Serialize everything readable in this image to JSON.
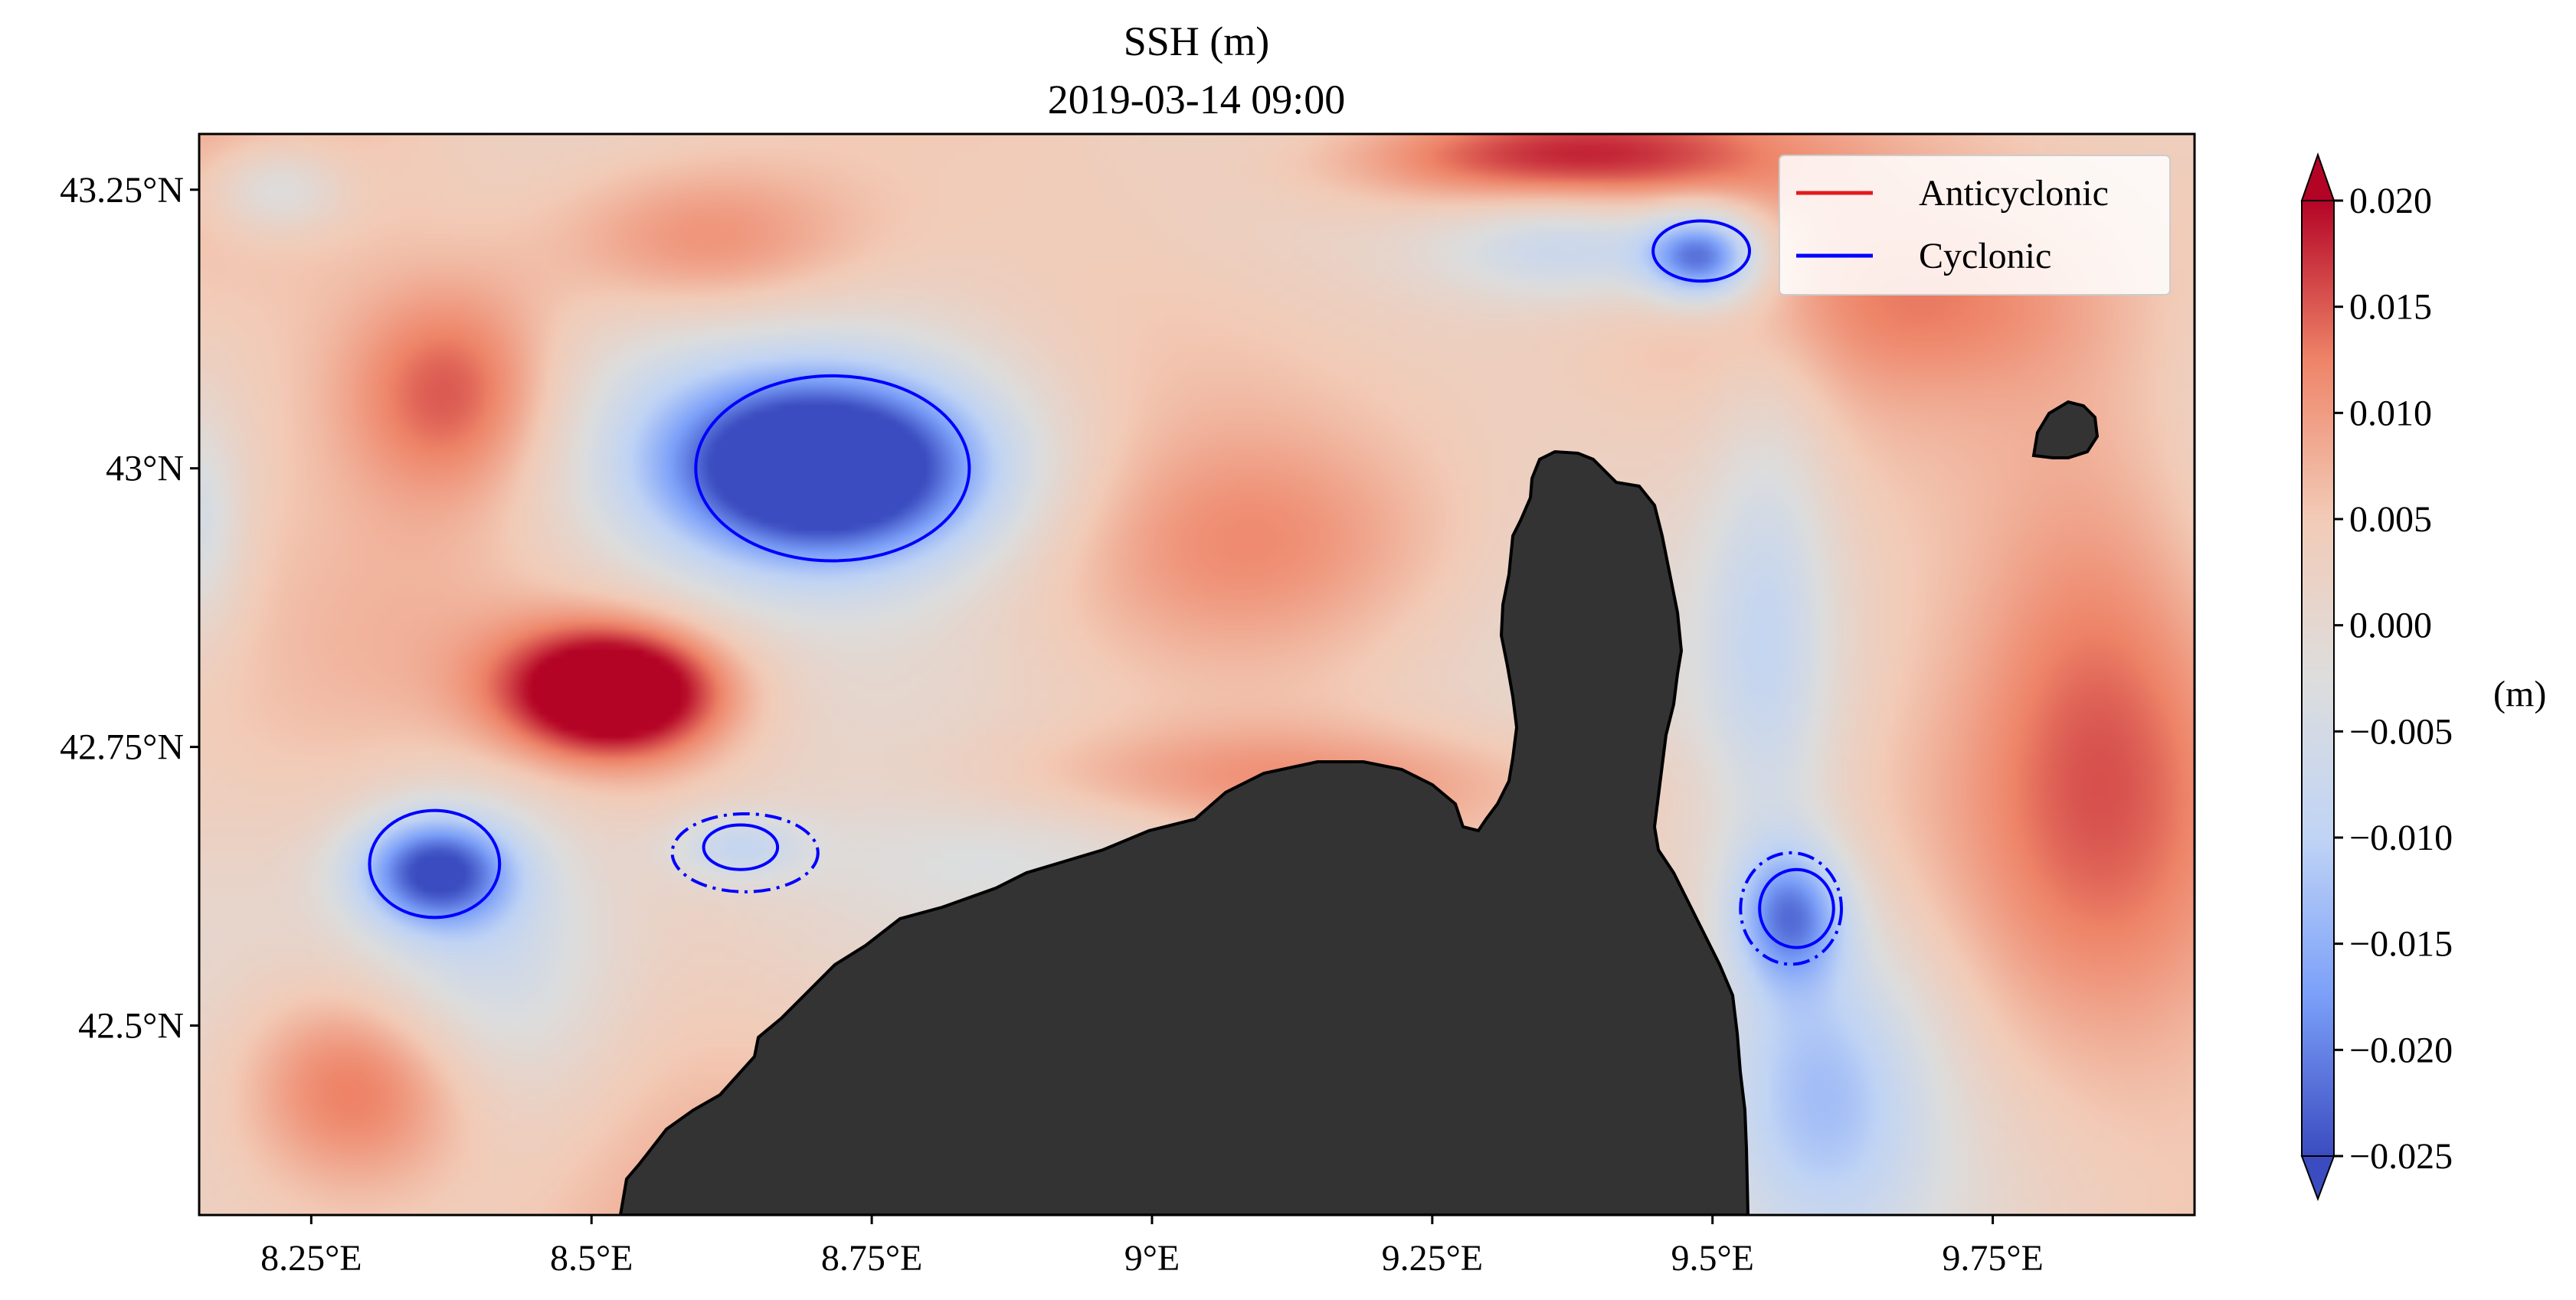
{
  "chart_data": {
    "type": "heatmap",
    "title": "SSH (m)",
    "subtitle": "2019-03-14 09:00",
    "x_range": [
      8.15,
      9.93
    ],
    "y_range": [
      42.33,
      43.3
    ],
    "x_ticks": [
      {
        "value": 8.25,
        "label": "8.25°E"
      },
      {
        "value": 8.5,
        "label": "8.5°E"
      },
      {
        "value": 8.75,
        "label": "8.75°E"
      },
      {
        "value": 9.0,
        "label": "9°E"
      },
      {
        "value": 9.25,
        "label": "9.25°E"
      },
      {
        "value": 9.5,
        "label": "9.5°E"
      },
      {
        "value": 9.75,
        "label": "9.75°E"
      }
    ],
    "y_ticks": [
      {
        "value": 43.25,
        "label": "43.25°N"
      },
      {
        "value": 43.0,
        "label": "43°N"
      },
      {
        "value": 42.75,
        "label": "42.75°N"
      },
      {
        "value": 42.5,
        "label": "42.5°N"
      }
    ],
    "colorbar": {
      "label": "(m)",
      "range": [
        -0.025,
        0.02
      ],
      "ticks": [
        {
          "value": 0.02,
          "label": "0.020"
        },
        {
          "value": 0.015,
          "label": "0.015"
        },
        {
          "value": 0.01,
          "label": "0.010"
        },
        {
          "value": 0.005,
          "label": "0.005"
        },
        {
          "value": 0.0,
          "label": "0.000"
        },
        {
          "value": -0.005,
          "label": "−0.005"
        },
        {
          "value": -0.01,
          "label": "−0.010"
        },
        {
          "value": -0.015,
          "label": "−0.015"
        },
        {
          "value": -0.02,
          "label": "−0.020"
        },
        {
          "value": -0.025,
          "label": "−0.025"
        }
      ],
      "colormap": "coolwarm",
      "colors": [
        "#3b4cc0",
        "#7b9ff9",
        "#c0d4f5",
        "#dddddd",
        "#f2cbb7",
        "#ee8468",
        "#b40426"
      ],
      "extend": "both"
    },
    "legend": {
      "position": "top-right",
      "entries": [
        {
          "label": "Anticyclonic",
          "color": "#e31a1c"
        },
        {
          "label": "Cyclonic",
          "color": "#0000ff"
        }
      ]
    },
    "field_features": [
      {
        "lon": 8.71,
        "lat": 43.0,
        "rx": 0.14,
        "ry": 0.08,
        "ssh": -0.03
      },
      {
        "lon": 8.71,
        "lat": 43.0,
        "rx": 0.26,
        "ry": 0.14,
        "ssh": -0.012
      },
      {
        "lon": 8.36,
        "lat": 42.64,
        "rx": 0.07,
        "ry": 0.05,
        "ssh": -0.024
      },
      {
        "lon": 8.4,
        "lat": 42.55,
        "rx": 0.12,
        "ry": 0.18,
        "ssh": -0.012
      },
      {
        "lon": 8.63,
        "lat": 42.66,
        "rx": 0.06,
        "ry": 0.03,
        "ssh": -0.01
      },
      {
        "lon": 9.49,
        "lat": 43.19,
        "rx": 0.05,
        "ry": 0.04,
        "ssh": -0.024
      },
      {
        "lon": 9.38,
        "lat": 43.2,
        "rx": 0.12,
        "ry": 0.05,
        "ssh": -0.012
      },
      {
        "lon": 9.57,
        "lat": 42.6,
        "rx": 0.05,
        "ry": 0.06,
        "ssh": -0.018
      },
      {
        "lon": 9.6,
        "lat": 42.45,
        "rx": 0.1,
        "ry": 0.15,
        "ssh": -0.014
      },
      {
        "lon": 9.55,
        "lat": 42.85,
        "rx": 0.06,
        "ry": 0.25,
        "ssh": -0.01
      },
      {
        "lon": 8.22,
        "lat": 43.25,
        "rx": 0.06,
        "ry": 0.04,
        "ssh": -0.009
      },
      {
        "lon": 8.15,
        "lat": 42.95,
        "rx": 0.04,
        "ry": 0.1,
        "ssh": -0.008
      },
      {
        "lon": 8.52,
        "lat": 42.8,
        "rx": 0.1,
        "ry": 0.06,
        "ssh": 0.025
      },
      {
        "lon": 8.3,
        "lat": 42.45,
        "rx": 0.12,
        "ry": 0.1,
        "ssh": 0.015
      },
      {
        "lon": 8.38,
        "lat": 43.07,
        "rx": 0.1,
        "ry": 0.1,
        "ssh": 0.013
      },
      {
        "lon": 8.6,
        "lat": 43.2,
        "rx": 0.15,
        "ry": 0.08,
        "ssh": 0.012
      },
      {
        "lon": 9.35,
        "lat": 43.28,
        "rx": 0.2,
        "ry": 0.05,
        "ssh": 0.016
      },
      {
        "lon": 9.1,
        "lat": 42.93,
        "rx": 0.2,
        "ry": 0.1,
        "ssh": 0.006
      },
      {
        "lon": 9.85,
        "lat": 42.8,
        "rx": 0.12,
        "ry": 0.3,
        "ssh": 0.008
      },
      {
        "lon": 9.1,
        "lat": 42.72,
        "rx": 0.3,
        "ry": 0.05,
        "ssh": 0.007
      },
      {
        "lon": 8.95,
        "lat": 42.65,
        "rx": 0.2,
        "ry": 0.06,
        "ssh": -0.004
      },
      {
        "lon": 9.7,
        "lat": 43.15,
        "rx": 0.15,
        "ry": 0.08,
        "ssh": 0.005
      }
    ],
    "eddies": [
      {
        "type": "Cyclonic",
        "style": "solid",
        "lon": 8.715,
        "lat": 43.0,
        "rx": 0.122,
        "ry": 0.083
      },
      {
        "type": "Cyclonic",
        "style": "solid",
        "lon": 8.36,
        "lat": 42.645,
        "rx": 0.058,
        "ry": 0.048
      },
      {
        "type": "Cyclonic",
        "style": "solid",
        "lon": 9.49,
        "lat": 43.195,
        "rx": 0.043,
        "ry": 0.027
      },
      {
        "type": "Cyclonic",
        "style": "solid",
        "lon": 8.633,
        "lat": 42.66,
        "rx": 0.033,
        "ry": 0.02
      },
      {
        "type": "Cyclonic",
        "style": "dashdot",
        "lon": 8.637,
        "lat": 42.655,
        "rx": 0.065,
        "ry": 0.035
      },
      {
        "type": "Cyclonic",
        "style": "solid",
        "lon": 9.575,
        "lat": 42.605,
        "rx": 0.033,
        "ry": 0.035
      },
      {
        "type": "Cyclonic",
        "style": "dashdot",
        "lon": 9.57,
        "lat": 42.605,
        "rx": 0.045,
        "ry": 0.05
      }
    ],
    "land_color": "#333333"
  }
}
